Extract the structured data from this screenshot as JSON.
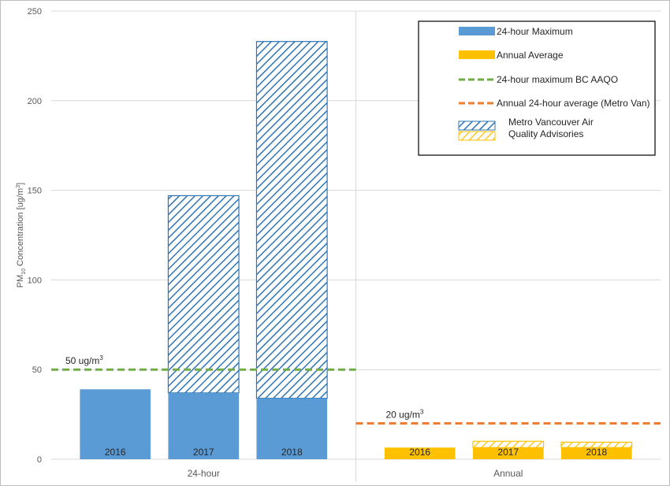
{
  "chart_data": {
    "type": "bar",
    "ylabel": "PM10 Concentration [ug/m3]",
    "ylabel_parts": {
      "pre": "PM",
      "sub": "10",
      "mid": " Concentration [ug/m",
      "sup": "3",
      "post": "]"
    },
    "ylim": [
      0,
      250
    ],
    "yticks": [
      0,
      50,
      100,
      150,
      200,
      250
    ],
    "grid": true,
    "legend_position": "top-right",
    "groups": [
      {
        "label": "24-hour",
        "bars": [
          {
            "year": "2016",
            "base": 39,
            "advisory_top": null
          },
          {
            "year": "2017",
            "base": 37,
            "advisory_top": 147
          },
          {
            "year": "2018",
            "base": 34,
            "advisory_top": 233
          }
        ]
      },
      {
        "label": "Annual",
        "bars": [
          {
            "year": "2016",
            "base": 6.5,
            "advisory_top": null
          },
          {
            "year": "2017",
            "base": 6.5,
            "advisory_top": 10
          },
          {
            "year": "2018",
            "base": 6.5,
            "advisory_top": 9.5
          }
        ]
      }
    ],
    "series": [
      {
        "name": "24-hour Maximum",
        "color": "#5b9bd5"
      },
      {
        "name": "Annual Average",
        "color": "#ffc000"
      }
    ],
    "reference_lines": [
      {
        "name": "24-hour maximum BC AAQO",
        "value": 50,
        "group": "24-hour",
        "color": "#70ad47",
        "label": "50 ug/m",
        "label_sup": "3"
      },
      {
        "name": "Annual 24-hour average (Metro Van)",
        "value": 20,
        "group": "Annual",
        "color": "#ed7d31",
        "label": "20 ug/m",
        "label_sup": "3"
      }
    ],
    "legend": [
      {
        "kind": "bar",
        "label": "24-hour Maximum",
        "color": "#5b9bd5"
      },
      {
        "kind": "bar",
        "label": "Annual Average",
        "color": "#ffc000"
      },
      {
        "kind": "dash",
        "label": "24-hour maximum BC AAQO",
        "color": "#70ad47"
      },
      {
        "kind": "dash",
        "label": "Annual 24-hour average (Metro Van)",
        "color": "#ed7d31"
      },
      {
        "kind": "hatch",
        "label_line1": "Metro Vancouver Air",
        "label_line2": "Quality Advisories"
      }
    ]
  }
}
